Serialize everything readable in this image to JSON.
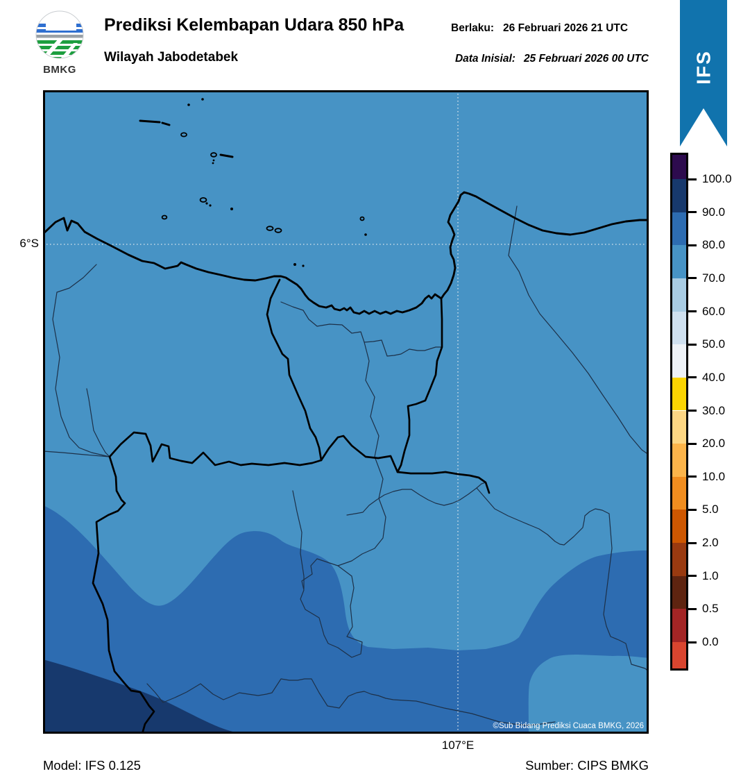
{
  "header": {
    "logo_text": "BMKG",
    "title": "Prediksi Kelembapan Udara 850 hPa",
    "subtitle": "Wilayah Jabodetabek",
    "valid_label": "Berlaku:",
    "valid_value": "26 Februari 2026 21 UTC",
    "init_label": "Data Inisial:",
    "init_value": "25 Februari 2026 00 UTC"
  },
  "ribbon": {
    "label": "IFS",
    "color": "#1173ad"
  },
  "map": {
    "lat_label": "6°S",
    "lon_label": "107°E",
    "copyright": "©Sub Bidang Prediksi Cuaca BMKG, 2026",
    "colors": {
      "base_70_80": "#4793c5",
      "region_80_90": "#2d6cb1",
      "region_90_100": "#17396d",
      "coastline": "#000000",
      "boundary_thin": "#1d3048",
      "gridline": "#e3e9ee"
    }
  },
  "colorbar": {
    "tick_labels": [
      "100.0",
      "90.0",
      "80.0",
      "70.0",
      "60.0",
      "50.0",
      "40.0",
      "30.0",
      "20.0",
      "10.0",
      "5.0",
      "2.0",
      "1.0",
      "0.5",
      "0.0"
    ],
    "segment_colors": [
      "#2d0b4e",
      "#17396d",
      "#2d6cb1",
      "#4793c5",
      "#a9cce3",
      "#cfe0ef",
      "#eef2f7",
      "#fad402",
      "#fcd683",
      "#fbb44a",
      "#f08d1f",
      "#cd5701",
      "#993a10",
      "#5e2410",
      "#a32525",
      "#d9452f"
    ]
  },
  "footer": {
    "model": "Model: IFS 0.125",
    "source": "Sumber: CIPS BMKG"
  }
}
